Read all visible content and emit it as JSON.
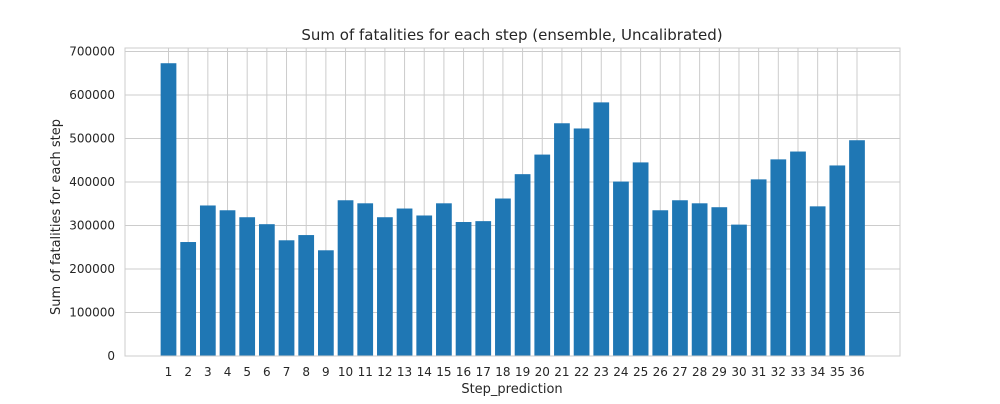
{
  "chart_data": {
    "type": "bar",
    "title": "Sum of fatalities for each step (ensemble, Uncalibrated)",
    "xlabel": "Step_prediction",
    "ylabel": "Sum of fatalities for each step",
    "categories": [
      "1",
      "2",
      "3",
      "4",
      "5",
      "6",
      "7",
      "8",
      "9",
      "10",
      "11",
      "12",
      "13",
      "14",
      "15",
      "16",
      "17",
      "18",
      "19",
      "20",
      "21",
      "22",
      "23",
      "24",
      "25",
      "26",
      "27",
      "28",
      "29",
      "30",
      "31",
      "32",
      "33",
      "34",
      "35",
      "36"
    ],
    "values": [
      673000,
      262000,
      346000,
      335000,
      319000,
      303000,
      266000,
      278000,
      243000,
      358000,
      351000,
      319000,
      339000,
      323000,
      351000,
      308000,
      310000,
      362000,
      418000,
      463000,
      535000,
      523000,
      583000,
      401000,
      445000,
      335000,
      358000,
      351000,
      342000,
      302000,
      406000,
      452000,
      470000,
      344000,
      438000,
      496000
    ],
    "ylim": [
      0,
      700000
    ],
    "yticks": [
      0,
      100000,
      200000,
      300000,
      400000,
      500000,
      600000,
      700000
    ],
    "ytick_labels": [
      "0",
      "100000",
      "200000",
      "300000",
      "400000",
      "500000",
      "600000",
      "700000"
    ],
    "grid": true,
    "bar_color": "#1f77b4",
    "grid_color": "#cccccc",
    "frame_color": "#cccccc"
  }
}
